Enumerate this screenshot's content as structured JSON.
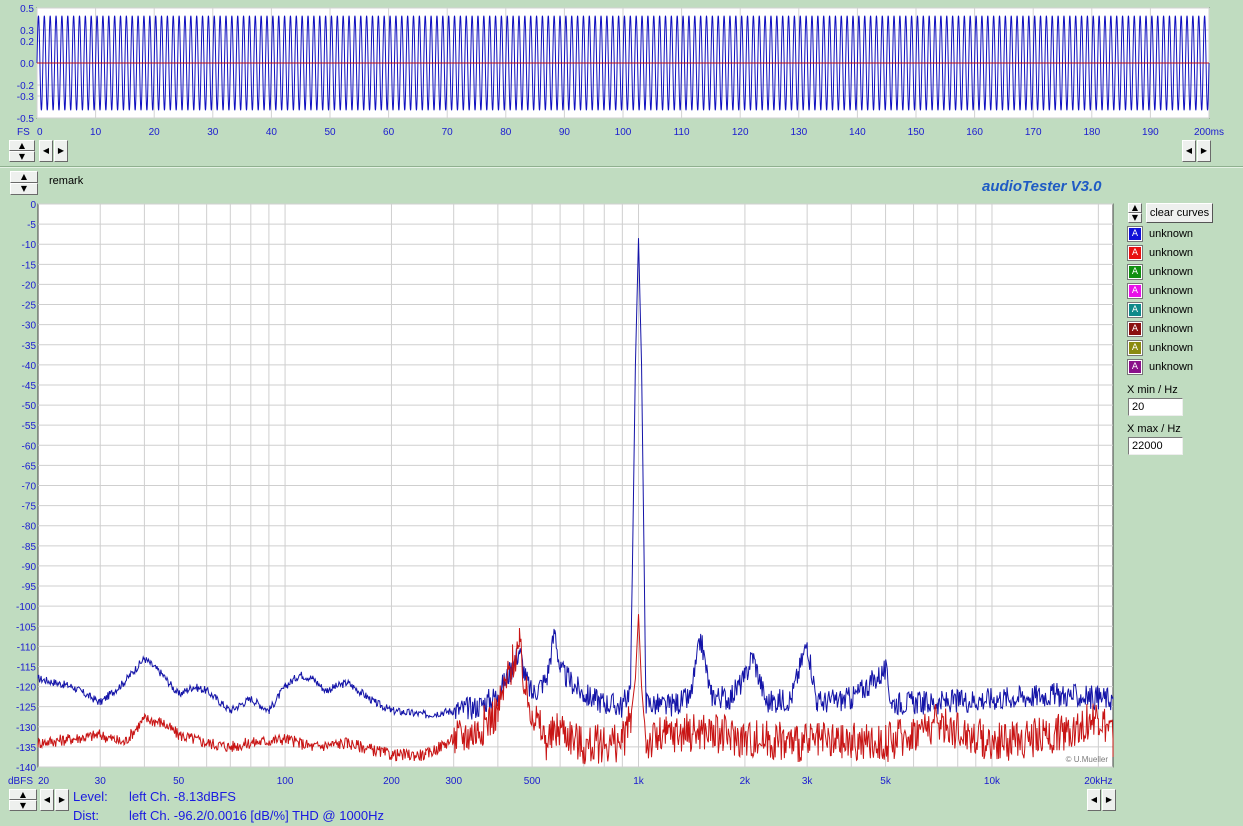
{
  "app": {
    "brand": "audioTester  V3.0",
    "copyright": "© U.Mueller",
    "remark_label": "remark",
    "clear_curves_label": "clear curves"
  },
  "time_chart": {
    "unit_label": "FS",
    "x_ticks": [
      "0",
      "10",
      "20",
      "30",
      "40",
      "50",
      "60",
      "70",
      "80",
      "90",
      "100",
      "110",
      "120",
      "130",
      "140",
      "150",
      "160",
      "170",
      "180",
      "190",
      "200ms"
    ],
    "y_ticks": [
      "0.5",
      "0.3",
      "0.2",
      "0.0",
      "-0.2",
      "-0.3",
      "-0.5"
    ]
  },
  "chart_data": [
    {
      "type": "line",
      "name": "time-domain waveform",
      "x_unit": "ms",
      "xlim": [
        0,
        200
      ],
      "ylim": [
        -0.5,
        0.5
      ],
      "y_ticks": [
        0.5,
        0.3,
        0.2,
        0.0,
        -0.2,
        -0.3,
        -0.5
      ],
      "series": [
        {
          "color": "#1010c0",
          "frequency_hz": 1000,
          "amplitude": 0.43
        },
        {
          "color": "#c01010",
          "constant": 0.0
        }
      ],
      "grid": true
    },
    {
      "type": "line",
      "name": "spectrum",
      "x_scale": "log",
      "xlim": [
        20,
        22000
      ],
      "ylim": [
        -140,
        0
      ],
      "y_ticks": [
        0,
        -5,
        -10,
        -15,
        -20,
        -25,
        -30,
        -35,
        -40,
        -45,
        -50,
        -55,
        -60,
        -65,
        -70,
        -75,
        -80,
        -85,
        -90,
        -95,
        -100,
        -105,
        -110,
        -115,
        -120,
        -125,
        -130,
        -135,
        -140
      ],
      "x_tick_labels": [
        "20",
        "30",
        "50",
        "100",
        "200",
        "300",
        "500",
        "1k",
        "2k",
        "3k",
        "5k",
        "10k",
        "20kHz"
      ],
      "x_tick_values": [
        20,
        30,
        50,
        100,
        200,
        300,
        500,
        1000,
        2000,
        3000,
        5000,
        10000,
        20000
      ],
      "y_unit_label": "dBFS",
      "grid": true,
      "series": [
        {
          "color": "#1414a8",
          "points": [
            [
              20,
              -118
            ],
            [
              25,
              -120
            ],
            [
              30,
              -124
            ],
            [
              35,
              -119
            ],
            [
              40,
              -113
            ],
            [
              45,
              -117
            ],
            [
              50,
              -122
            ],
            [
              55,
              -120
            ],
            [
              60,
              -121
            ],
            [
              70,
              -126
            ],
            [
              80,
              -123
            ],
            [
              90,
              -126
            ],
            [
              100,
              -120
            ],
            [
              110,
              -117
            ],
            [
              120,
              -118
            ],
            [
              130,
              -121
            ],
            [
              150,
              -119
            ],
            [
              180,
              -124
            ],
            [
              200,
              -126
            ],
            [
              250,
              -127
            ],
            [
              300,
              -126
            ],
            [
              350,
              -125
            ],
            [
              400,
              -122
            ],
            [
              440,
              -115
            ],
            [
              460,
              -111
            ],
            [
              480,
              -118
            ],
            [
              500,
              -122
            ],
            [
              550,
              -118
            ],
            [
              580,
              -106
            ],
            [
              600,
              -116
            ],
            [
              700,
              -122
            ],
            [
              800,
              -124
            ],
            [
              900,
              -125
            ],
            [
              950,
              -120
            ],
            [
              980,
              -40
            ],
            [
              1000,
              -8.5
            ],
            [
              1020,
              -40
            ],
            [
              1050,
              -124
            ],
            [
              1200,
              -125
            ],
            [
              1400,
              -123
            ],
            [
              1500,
              -108
            ],
            [
              1600,
              -122
            ],
            [
              1800,
              -123
            ],
            [
              2000,
              -118
            ],
            [
              2100,
              -112
            ],
            [
              2300,
              -124
            ],
            [
              2700,
              -123
            ],
            [
              3000,
              -109
            ],
            [
              3200,
              -124
            ],
            [
              4000,
              -123
            ],
            [
              5000,
              -116
            ],
            [
              5200,
              -124
            ],
            [
              7000,
              -124
            ],
            [
              10000,
              -123
            ],
            [
              15000,
              -122
            ],
            [
              22000,
              -123
            ]
          ]
        },
        {
          "color": "#c81414",
          "points": [
            [
              20,
              -134
            ],
            [
              25,
              -133
            ],
            [
              30,
              -132
            ],
            [
              35,
              -134
            ],
            [
              40,
              -128
            ],
            [
              45,
              -129
            ],
            [
              50,
              -132
            ],
            [
              60,
              -134
            ],
            [
              70,
              -135
            ],
            [
              80,
              -134
            ],
            [
              100,
              -133
            ],
            [
              120,
              -135
            ],
            [
              150,
              -134
            ],
            [
              200,
              -137
            ],
            [
              250,
              -137
            ],
            [
              300,
              -133
            ],
            [
              350,
              -131
            ],
            [
              400,
              -126
            ],
            [
              440,
              -114
            ],
            [
              460,
              -110
            ],
            [
              480,
              -122
            ],
            [
              500,
              -126
            ],
            [
              550,
              -134
            ],
            [
              600,
              -130
            ],
            [
              700,
              -135
            ],
            [
              800,
              -134
            ],
            [
              900,
              -134
            ],
            [
              950,
              -128
            ],
            [
              980,
              -118
            ],
            [
              1000,
              -102
            ],
            [
              1020,
              -120
            ],
            [
              1050,
              -134
            ],
            [
              1200,
              -132
            ],
            [
              1500,
              -131
            ],
            [
              2000,
              -133
            ],
            [
              3000,
              -134
            ],
            [
              5000,
              -134
            ],
            [
              7000,
              -129
            ],
            [
              10000,
              -134
            ],
            [
              15000,
              -132
            ],
            [
              20000,
              -128
            ],
            [
              22000,
              -133
            ]
          ]
        }
      ]
    }
  ],
  "legend": {
    "items": [
      {
        "label": "unknown",
        "color": "#1010d8",
        "glyph": "A"
      },
      {
        "label": "unknown",
        "color": "#e81010",
        "glyph": "A"
      },
      {
        "label": "unknown",
        "color": "#109010",
        "glyph": "A"
      },
      {
        "label": "unknown",
        "color": "#e810e8",
        "glyph": "A"
      },
      {
        "label": "unknown",
        "color": "#108a8a",
        "glyph": "A"
      },
      {
        "label": "unknown",
        "color": "#8a1010",
        "glyph": "A"
      },
      {
        "label": "unknown",
        "color": "#8a8a10",
        "glyph": "A"
      },
      {
        "label": "unknown",
        "color": "#8a108a",
        "glyph": "A"
      }
    ]
  },
  "controls": {
    "xmin_label": "X min / Hz",
    "xmin_value": "20",
    "xmax_label": "X max / Hz",
    "xmax_value": "22000"
  },
  "status": {
    "level_label": "Level:",
    "level_value": "left Ch. -8.13dBFS",
    "dist_label": "Dist:",
    "dist_value": "left Ch. -96.2/0.0016 [dB/%] THD @ 1000Hz"
  },
  "icons": {
    "spin": "up-down-arrow-icon",
    "left": "left-arrow-icon",
    "right": "right-arrow-icon"
  }
}
